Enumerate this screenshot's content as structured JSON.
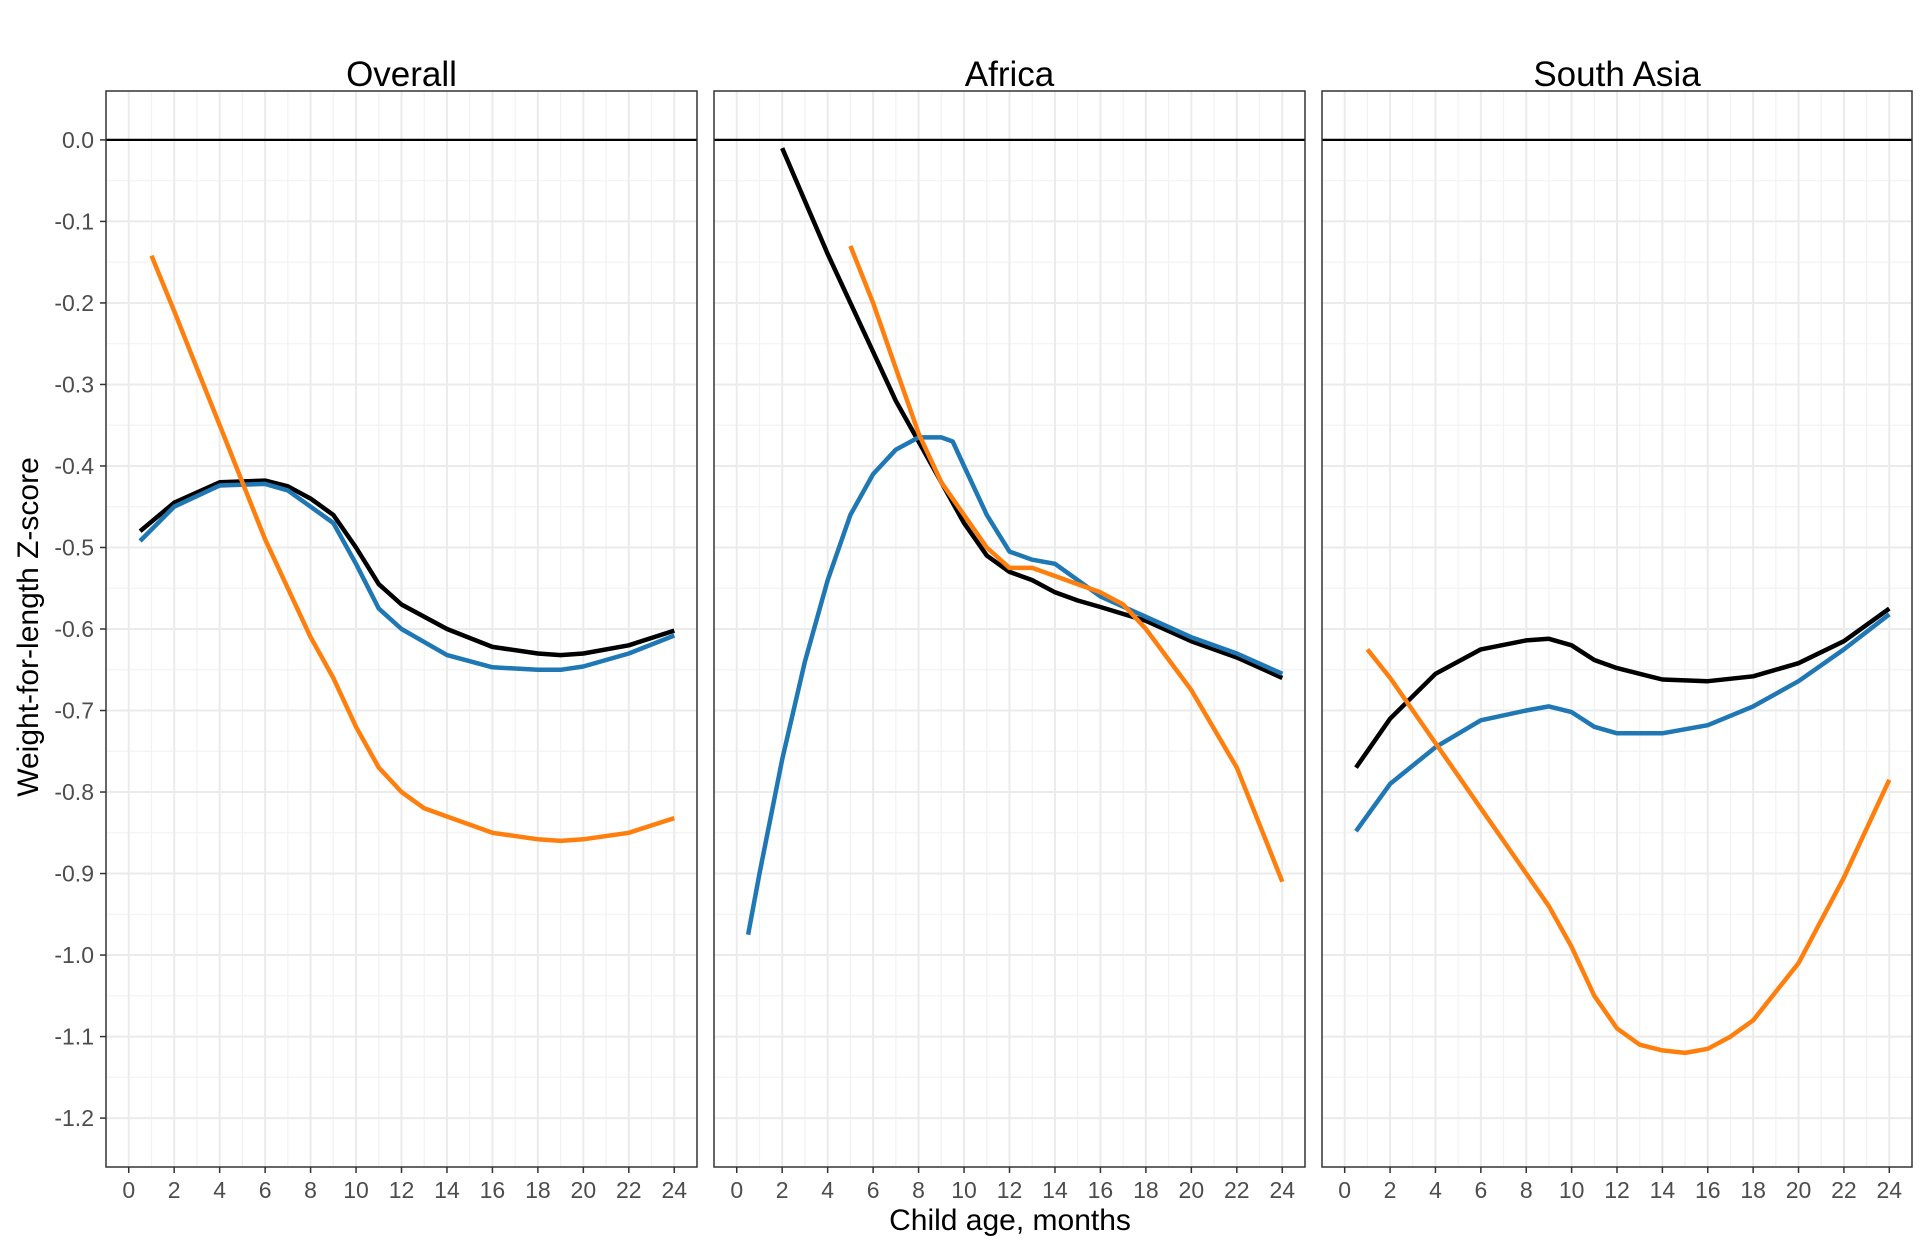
{
  "chart_data": {
    "type": "line",
    "xlabel": "Child age, months",
    "ylabel": "Weight-for-length Z-score",
    "xlim": [
      -1,
      25
    ],
    "ylim": [
      -1.26,
      0.06
    ],
    "x_ticks": [
      0,
      2,
      4,
      6,
      8,
      10,
      12,
      14,
      16,
      18,
      20,
      22,
      24
    ],
    "y_ticks": [
      0.0,
      -0.1,
      -0.2,
      -0.3,
      -0.4,
      -0.5,
      -0.6,
      -0.7,
      -0.8,
      -0.9,
      -1.0,
      -1.1,
      -1.2
    ],
    "y_tick_labels": [
      "0.0",
      "-0.1",
      "-0.2",
      "-0.3",
      "-0.4",
      "-0.5",
      "-0.6",
      "-0.7",
      "-0.8",
      "-0.9",
      "-1.0",
      "-1.1",
      "-1.2"
    ],
    "grid": true,
    "reference_line_y": 0,
    "colors": {
      "black": "#000000",
      "blue": "#1f77b4",
      "orange": "#ff7f0e"
    },
    "panels": [
      {
        "title": "Overall",
        "series": [
          {
            "color": "#000000",
            "x": [
              0.5,
              2,
              4,
              6,
              7,
              8,
              9,
              10,
              11,
              12,
              14,
              16,
              18,
              19,
              20,
              22,
              24
            ],
            "y": [
              -0.48,
              -0.445,
              -0.42,
              -0.418,
              -0.425,
              -0.44,
              -0.46,
              -0.5,
              -0.545,
              -0.57,
              -0.6,
              -0.622,
              -0.63,
              -0.632,
              -0.63,
              -0.62,
              -0.602
            ]
          },
          {
            "color": "#1f77b4",
            "x": [
              0.5,
              2,
              4,
              6,
              7,
              8,
              9,
              10,
              11,
              12,
              14,
              16,
              18,
              19,
              20,
              22,
              24
            ],
            "y": [
              -0.492,
              -0.45,
              -0.424,
              -0.422,
              -0.43,
              -0.45,
              -0.47,
              -0.52,
              -0.575,
              -0.6,
              -0.632,
              -0.647,
              -0.65,
              -0.65,
              -0.646,
              -0.63,
              -0.608
            ]
          },
          {
            "color": "#ff7f0e",
            "x": [
              1,
              2,
              3,
              4,
              5,
              6,
              7,
              8,
              9,
              10,
              11,
              12,
              13,
              14,
              15,
              16,
              18,
              19,
              20,
              22,
              24
            ],
            "y": [
              -0.142,
              -0.21,
              -0.28,
              -0.35,
              -0.42,
              -0.49,
              -0.55,
              -0.61,
              -0.66,
              -0.72,
              -0.77,
              -0.8,
              -0.82,
              -0.83,
              -0.84,
              -0.85,
              -0.858,
              -0.86,
              -0.858,
              -0.85,
              -0.832
            ]
          }
        ]
      },
      {
        "title": "Africa",
        "series": [
          {
            "color": "#000000",
            "x": [
              2,
              3,
              4,
              5,
              6,
              7,
              8,
              9,
              10,
              11,
              12,
              13,
              14,
              15,
              16,
              18,
              20,
              22,
              24
            ],
            "y": [
              -0.01,
              -0.075,
              -0.14,
              -0.2,
              -0.26,
              -0.32,
              -0.37,
              -0.42,
              -0.47,
              -0.51,
              -0.53,
              -0.54,
              -0.555,
              -0.565,
              -0.573,
              -0.59,
              -0.615,
              -0.635,
              -0.66
            ]
          },
          {
            "color": "#1f77b4",
            "x": [
              0.5,
              1,
              2,
              3,
              4,
              5,
              6,
              7,
              8,
              9,
              9.5,
              10,
              11,
              12,
              13,
              14,
              15,
              16,
              18,
              20,
              22,
              24
            ],
            "y": [
              -0.975,
              -0.9,
              -0.76,
              -0.64,
              -0.54,
              -0.46,
              -0.41,
              -0.38,
              -0.365,
              -0.365,
              -0.37,
              -0.4,
              -0.46,
              -0.505,
              -0.515,
              -0.52,
              -0.54,
              -0.56,
              -0.585,
              -0.61,
              -0.63,
              -0.655
            ]
          },
          {
            "color": "#ff7f0e",
            "x": [
              5,
              6,
              7,
              8,
              9,
              10,
              11,
              12,
              13,
              14,
              15,
              16,
              17,
              18,
              20,
              22,
              24
            ],
            "y": [
              -0.13,
              -0.2,
              -0.28,
              -0.36,
              -0.42,
              -0.46,
              -0.5,
              -0.525,
              -0.525,
              -0.535,
              -0.545,
              -0.555,
              -0.57,
              -0.6,
              -0.675,
              -0.77,
              -0.91
            ]
          }
        ]
      },
      {
        "title": "South Asia",
        "series": [
          {
            "color": "#000000",
            "x": [
              0.5,
              2,
              4,
              6,
              8,
              9,
              10,
              11,
              12,
              14,
              16,
              18,
              20,
              22,
              24
            ],
            "y": [
              -0.77,
              -0.71,
              -0.655,
              -0.625,
              -0.614,
              -0.612,
              -0.62,
              -0.638,
              -0.648,
              -0.662,
              -0.664,
              -0.658,
              -0.642,
              -0.615,
              -0.575
            ]
          },
          {
            "color": "#1f77b4",
            "x": [
              0.5,
              2,
              4,
              6,
              8,
              9,
              10,
              11,
              12,
              14,
              16,
              18,
              20,
              22,
              24
            ],
            "y": [
              -0.848,
              -0.79,
              -0.745,
              -0.712,
              -0.7,
              -0.695,
              -0.702,
              -0.72,
              -0.728,
              -0.728,
              -0.718,
              -0.695,
              -0.664,
              -0.625,
              -0.582
            ]
          },
          {
            "color": "#ff7f0e",
            "x": [
              1,
              2,
              3,
              4,
              5,
              6,
              7,
              8,
              9,
              10,
              11,
              12,
              13,
              14,
              15,
              16,
              17,
              18,
              20,
              22,
              24
            ],
            "y": [
              -0.625,
              -0.66,
              -0.7,
              -0.74,
              -0.78,
              -0.82,
              -0.86,
              -0.9,
              -0.94,
              -0.99,
              -1.05,
              -1.09,
              -1.11,
              -1.117,
              -1.12,
              -1.115,
              -1.1,
              -1.08,
              -1.01,
              -0.905,
              -0.785
            ]
          }
        ]
      }
    ]
  }
}
